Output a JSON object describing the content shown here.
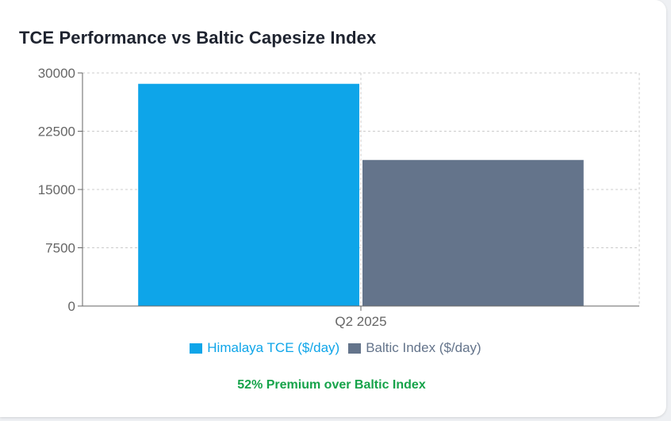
{
  "card": {
    "title": "TCE Performance vs Baltic Capesize Index",
    "premium_text": "52% Premium over Baltic Index"
  },
  "chart_data": {
    "type": "bar",
    "title": "TCE Performance vs Baltic Capesize Index",
    "categories": [
      "Q2 2025"
    ],
    "series": [
      {
        "name": "Himalaya TCE ($/day)",
        "values": [
          28600
        ],
        "color": "#0ea5e9"
      },
      {
        "name": "Baltic Index ($/day)",
        "values": [
          18800
        ],
        "color": "#64748b"
      }
    ],
    "ylim": [
      0,
      30000
    ],
    "yticks": [
      "0",
      "7500",
      "15000",
      "22500",
      "30000"
    ],
    "xlabel": "",
    "ylabel": "",
    "grid": true,
    "legend_position": "bottom"
  },
  "colors": {
    "accent": "#0ea5e9",
    "secondary": "#64748b",
    "premium": "#16a34a",
    "axis": "#666666",
    "grid": "#cccccc"
  }
}
